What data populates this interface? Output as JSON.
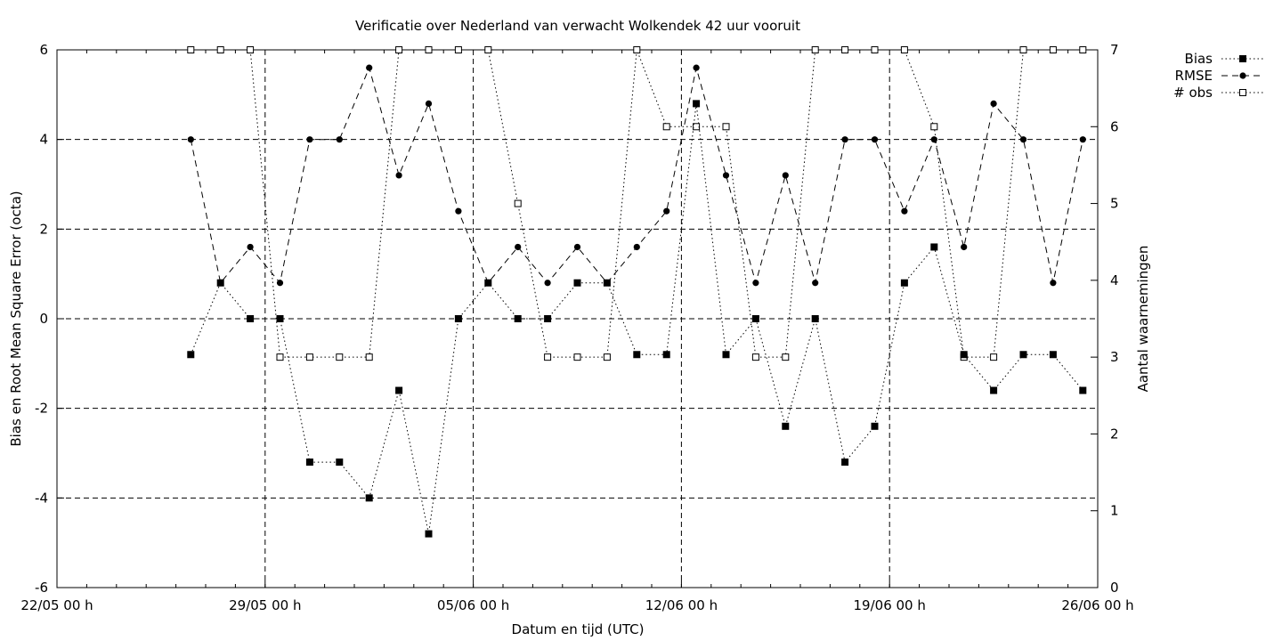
{
  "chart_data": {
    "type": "line",
    "title": "Verificatie over Nederland van verwacht Wolkendek 42 uur vooruit",
    "xlabel": "Datum en tijd (UTC)",
    "ylabel": "Bias en Root Mean Square Error (octa)",
    "y2label": "Aantal waarnemingen",
    "x_ticks": [
      "22/05 00 h",
      "29/05 00 h",
      "05/06 00 h",
      "12/06 00 h",
      "19/06 00 h",
      "26/06 00 h"
    ],
    "xlim_days": [
      0,
      35
    ],
    "ylim": [
      -6,
      6
    ],
    "y_ticks": [
      "6",
      "4",
      "2",
      "0",
      "-2",
      "-4",
      "-6"
    ],
    "y2lim": [
      0,
      7
    ],
    "y2_ticks": [
      "7",
      "6",
      "5",
      "4",
      "3",
      "2",
      "1",
      "0"
    ],
    "grid": true,
    "legend_position": "outside top-right",
    "x_days": [
      4.5,
      5.5,
      6.5,
      7.5,
      8.5,
      9.5,
      10.5,
      11.5,
      12.5,
      13.5,
      14.5,
      15.5,
      16.5,
      17.5,
      18.5,
      19.5,
      20.5,
      21.5,
      22.5,
      23.5,
      24.5,
      25.5,
      26.5,
      27.5,
      28.5,
      29.5,
      30.5,
      31.5,
      32.5,
      33.5,
      34.5
    ],
    "series": [
      {
        "name": "Bias",
        "axis": "y1",
        "marker": "filled-square",
        "dash": "dotted",
        "values": [
          -0.8,
          0.8,
          0.0,
          0.0,
          -3.2,
          -3.2,
          -4.0,
          -1.6,
          -4.8,
          0.0,
          0.8,
          0.0,
          0.0,
          0.8,
          0.8,
          -0.8,
          -0.8,
          4.8,
          -0.8,
          0.0,
          -2.4,
          0.0,
          -3.2,
          -2.4,
          0.8,
          1.6,
          -0.8,
          -1.6,
          -0.8,
          -0.8,
          -1.6
        ]
      },
      {
        "name": "RMSE",
        "axis": "y1",
        "marker": "filled-circle",
        "dash": "dashed",
        "values": [
          4.0,
          0.8,
          1.6,
          0.8,
          4.0,
          4.0,
          5.6,
          3.2,
          4.8,
          2.4,
          0.8,
          1.6,
          0.8,
          1.6,
          0.8,
          1.6,
          2.4,
          5.6,
          3.2,
          0.8,
          3.2,
          0.8,
          4.0,
          4.0,
          2.4,
          4.0,
          1.6,
          4.8,
          4.0,
          0.8,
          4.0
        ]
      },
      {
        "name": "# obs",
        "axis": "y2",
        "marker": "open-square",
        "dash": "dotted",
        "values": [
          7,
          7,
          7,
          3,
          3,
          3,
          3,
          7,
          7,
          7,
          7,
          5,
          3,
          3,
          3,
          7,
          6,
          6,
          6,
          3,
          3,
          7,
          7,
          7,
          7,
          6,
          3,
          3,
          7,
          7,
          7
        ]
      }
    ]
  }
}
